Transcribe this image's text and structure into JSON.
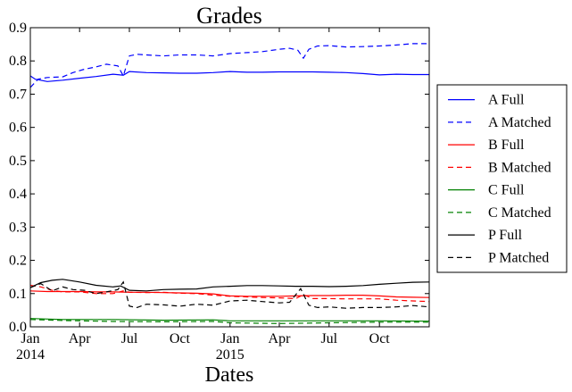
{
  "chart_data": {
    "type": "line",
    "title": "Grades",
    "xlabel": "Dates",
    "ylabel": "",
    "xlim": [
      "2014-01-01",
      "2015-12-31"
    ],
    "ylim": [
      0,
      0.9
    ],
    "grid": false,
    "legend_position": "outside-right",
    "x_ticks": [
      {
        "date": "2014-01-01",
        "label": "Jan",
        "sublabel": "2014"
      },
      {
        "date": "2014-04-01",
        "label": "Apr",
        "sublabel": ""
      },
      {
        "date": "2014-07-01",
        "label": "Jul",
        "sublabel": ""
      },
      {
        "date": "2014-10-01",
        "label": "Oct",
        "sublabel": ""
      },
      {
        "date": "2015-01-01",
        "label": "Jan",
        "sublabel": "2015"
      },
      {
        "date": "2015-04-01",
        "label": "Apr",
        "sublabel": ""
      },
      {
        "date": "2015-07-01",
        "label": "Jul",
        "sublabel": ""
      },
      {
        "date": "2015-10-01",
        "label": "Oct",
        "sublabel": ""
      }
    ],
    "y_ticks": [
      0.0,
      0.1,
      0.2,
      0.3,
      0.4,
      0.5,
      0.6,
      0.7,
      0.8,
      0.9
    ],
    "y_tick_labels": [
      "0.0",
      "0.1",
      "0.2",
      "0.3",
      "0.4",
      "0.5",
      "0.6",
      "0.7",
      "0.8",
      "0.9"
    ],
    "series": [
      {
        "name": "A Full",
        "color": "#0000ff",
        "dash": "solid",
        "points": [
          [
            "2014-01-01",
            0.755
          ],
          [
            "2014-01-10",
            0.745
          ],
          [
            "2014-02-01",
            0.738
          ],
          [
            "2014-03-01",
            0.742
          ],
          [
            "2014-04-01",
            0.748
          ],
          [
            "2014-05-01",
            0.753
          ],
          [
            "2014-06-01",
            0.76
          ],
          [
            "2014-06-20",
            0.757
          ],
          [
            "2014-07-01",
            0.768
          ],
          [
            "2014-08-01",
            0.765
          ],
          [
            "2014-09-01",
            0.764
          ],
          [
            "2014-10-01",
            0.763
          ],
          [
            "2014-11-01",
            0.763
          ],
          [
            "2014-12-01",
            0.765
          ],
          [
            "2015-01-01",
            0.768
          ],
          [
            "2015-02-01",
            0.766
          ],
          [
            "2015-03-01",
            0.766
          ],
          [
            "2015-04-01",
            0.767
          ],
          [
            "2015-05-01",
            0.767
          ],
          [
            "2015-06-01",
            0.767
          ],
          [
            "2015-07-01",
            0.766
          ],
          [
            "2015-08-01",
            0.765
          ],
          [
            "2015-09-01",
            0.762
          ],
          [
            "2015-10-01",
            0.758
          ],
          [
            "2015-11-01",
            0.76
          ],
          [
            "2015-12-01",
            0.759
          ],
          [
            "2015-12-31",
            0.759
          ]
        ]
      },
      {
        "name": "A Matched",
        "color": "#0000ff",
        "dash": "dashed",
        "points": [
          [
            "2014-01-01",
            0.72
          ],
          [
            "2014-01-15",
            0.745
          ],
          [
            "2014-02-01",
            0.75
          ],
          [
            "2014-03-01",
            0.752
          ],
          [
            "2014-03-20",
            0.765
          ],
          [
            "2014-04-10",
            0.775
          ],
          [
            "2014-05-01",
            0.782
          ],
          [
            "2014-05-20",
            0.79
          ],
          [
            "2014-06-10",
            0.785
          ],
          [
            "2014-06-20",
            0.755
          ],
          [
            "2014-07-01",
            0.815
          ],
          [
            "2014-07-15",
            0.82
          ],
          [
            "2014-08-01",
            0.818
          ],
          [
            "2014-09-01",
            0.815
          ],
          [
            "2014-10-01",
            0.818
          ],
          [
            "2014-11-01",
            0.818
          ],
          [
            "2014-12-01",
            0.815
          ],
          [
            "2015-01-01",
            0.822
          ],
          [
            "2015-02-01",
            0.825
          ],
          [
            "2015-03-01",
            0.828
          ],
          [
            "2015-04-01",
            0.835
          ],
          [
            "2015-04-20",
            0.838
          ],
          [
            "2015-05-05",
            0.832
          ],
          [
            "2015-05-15",
            0.808
          ],
          [
            "2015-05-25",
            0.835
          ],
          [
            "2015-06-10",
            0.845
          ],
          [
            "2015-07-01",
            0.846
          ],
          [
            "2015-08-01",
            0.842
          ],
          [
            "2015-09-01",
            0.843
          ],
          [
            "2015-10-01",
            0.845
          ],
          [
            "2015-11-01",
            0.848
          ],
          [
            "2015-12-01",
            0.852
          ],
          [
            "2015-12-31",
            0.852
          ]
        ]
      },
      {
        "name": "B Full",
        "color": "#ff0000",
        "dash": "solid",
        "points": [
          [
            "2014-01-01",
            0.108
          ],
          [
            "2014-02-01",
            0.106
          ],
          [
            "2014-03-01",
            0.106
          ],
          [
            "2014-04-01",
            0.106
          ],
          [
            "2014-05-01",
            0.105
          ],
          [
            "2014-06-01",
            0.105
          ],
          [
            "2014-07-01",
            0.104
          ],
          [
            "2014-08-01",
            0.104
          ],
          [
            "2014-09-01",
            0.103
          ],
          [
            "2014-10-01",
            0.102
          ],
          [
            "2014-11-01",
            0.101
          ],
          [
            "2014-12-01",
            0.099
          ],
          [
            "2015-01-01",
            0.093
          ],
          [
            "2015-02-01",
            0.092
          ],
          [
            "2015-03-01",
            0.092
          ],
          [
            "2015-04-01",
            0.092
          ],
          [
            "2015-05-01",
            0.093
          ],
          [
            "2015-06-01",
            0.094
          ],
          [
            "2015-07-01",
            0.094
          ],
          [
            "2015-08-01",
            0.095
          ],
          [
            "2015-09-01",
            0.095
          ],
          [
            "2015-10-01",
            0.093
          ],
          [
            "2015-11-01",
            0.09
          ],
          [
            "2015-12-01",
            0.089
          ],
          [
            "2015-12-31",
            0.088
          ]
        ]
      },
      {
        "name": "B Matched",
        "color": "#ff0000",
        "dash": "dashed",
        "points": [
          [
            "2014-01-01",
            0.125
          ],
          [
            "2014-01-20",
            0.12
          ],
          [
            "2014-02-10",
            0.11
          ],
          [
            "2014-03-01",
            0.105
          ],
          [
            "2014-04-01",
            0.105
          ],
          [
            "2014-05-01",
            0.1
          ],
          [
            "2014-06-01",
            0.1
          ],
          [
            "2014-06-20",
            0.108
          ],
          [
            "2014-07-01",
            0.104
          ],
          [
            "2014-08-01",
            0.103
          ],
          [
            "2014-09-01",
            0.104
          ],
          [
            "2014-10-01",
            0.101
          ],
          [
            "2014-11-01",
            0.1
          ],
          [
            "2014-12-01",
            0.095
          ],
          [
            "2015-01-01",
            0.092
          ],
          [
            "2015-02-01",
            0.09
          ],
          [
            "2015-03-01",
            0.088
          ],
          [
            "2015-04-01",
            0.087
          ],
          [
            "2015-05-01",
            0.085
          ],
          [
            "2015-05-15",
            0.097
          ],
          [
            "2015-06-01",
            0.085
          ],
          [
            "2015-07-01",
            0.085
          ],
          [
            "2015-08-01",
            0.084
          ],
          [
            "2015-09-01",
            0.084
          ],
          [
            "2015-10-01",
            0.084
          ],
          [
            "2015-11-01",
            0.08
          ],
          [
            "2015-12-01",
            0.078
          ],
          [
            "2015-12-31",
            0.076
          ]
        ]
      },
      {
        "name": "C Full",
        "color": "#008000",
        "dash": "solid",
        "points": [
          [
            "2014-01-01",
            0.025
          ],
          [
            "2014-03-01",
            0.022
          ],
          [
            "2014-06-01",
            0.022
          ],
          [
            "2014-09-01",
            0.02
          ],
          [
            "2014-12-01",
            0.021
          ],
          [
            "2015-01-01",
            0.018
          ],
          [
            "2015-04-01",
            0.018
          ],
          [
            "2015-07-01",
            0.018
          ],
          [
            "2015-10-01",
            0.018
          ],
          [
            "2015-12-31",
            0.017
          ]
        ]
      },
      {
        "name": "C Matched",
        "color": "#008000",
        "dash": "dashed",
        "points": [
          [
            "2014-01-01",
            0.022
          ],
          [
            "2014-03-01",
            0.019
          ],
          [
            "2014-06-01",
            0.016
          ],
          [
            "2014-09-01",
            0.015
          ],
          [
            "2014-12-01",
            0.016
          ],
          [
            "2015-01-01",
            0.012
          ],
          [
            "2015-04-01",
            0.01
          ],
          [
            "2015-07-01",
            0.012
          ],
          [
            "2015-10-01",
            0.014
          ],
          [
            "2015-12-31",
            0.014
          ]
        ]
      },
      {
        "name": "P Full",
        "color": "#000000",
        "dash": "solid",
        "points": [
          [
            "2014-01-01",
            0.118
          ],
          [
            "2014-01-20",
            0.133
          ],
          [
            "2014-02-10",
            0.14
          ],
          [
            "2014-03-01",
            0.143
          ],
          [
            "2014-04-01",
            0.135
          ],
          [
            "2014-05-01",
            0.125
          ],
          [
            "2014-06-01",
            0.12
          ],
          [
            "2014-06-15",
            0.123
          ],
          [
            "2014-07-01",
            0.11
          ],
          [
            "2014-08-01",
            0.108
          ],
          [
            "2014-09-01",
            0.112
          ],
          [
            "2014-10-01",
            0.113
          ],
          [
            "2014-11-01",
            0.114
          ],
          [
            "2014-12-01",
            0.12
          ],
          [
            "2015-01-01",
            0.122
          ],
          [
            "2015-02-01",
            0.124
          ],
          [
            "2015-03-01",
            0.124
          ],
          [
            "2015-04-01",
            0.123
          ],
          [
            "2015-05-01",
            0.122
          ],
          [
            "2015-06-01",
            0.122
          ],
          [
            "2015-07-01",
            0.121
          ],
          [
            "2015-08-01",
            0.122
          ],
          [
            "2015-09-01",
            0.124
          ],
          [
            "2015-10-01",
            0.128
          ],
          [
            "2015-11-01",
            0.131
          ],
          [
            "2015-12-01",
            0.134
          ],
          [
            "2015-12-31",
            0.135
          ]
        ]
      },
      {
        "name": "P Matched",
        "color": "#000000",
        "dash": "dashed",
        "points": [
          [
            "2014-01-01",
            0.118
          ],
          [
            "2014-01-20",
            0.13
          ],
          [
            "2014-02-10",
            0.108
          ],
          [
            "2014-03-01",
            0.12
          ],
          [
            "2014-03-20",
            0.112
          ],
          [
            "2014-04-10",
            0.11
          ],
          [
            "2014-05-01",
            0.1
          ],
          [
            "2014-05-20",
            0.105
          ],
          [
            "2014-06-10",
            0.112
          ],
          [
            "2014-06-20",
            0.135
          ],
          [
            "2014-07-01",
            0.062
          ],
          [
            "2014-07-15",
            0.058
          ],
          [
            "2014-08-01",
            0.068
          ],
          [
            "2014-09-01",
            0.066
          ],
          [
            "2014-10-01",
            0.062
          ],
          [
            "2014-11-01",
            0.068
          ],
          [
            "2014-12-01",
            0.065
          ],
          [
            "2015-01-01",
            0.078
          ],
          [
            "2015-02-01",
            0.08
          ],
          [
            "2015-03-01",
            0.076
          ],
          [
            "2015-04-01",
            0.072
          ],
          [
            "2015-04-20",
            0.074
          ],
          [
            "2015-05-10",
            0.115
          ],
          [
            "2015-05-25",
            0.065
          ],
          [
            "2015-06-10",
            0.058
          ],
          [
            "2015-07-01",
            0.06
          ],
          [
            "2015-08-01",
            0.056
          ],
          [
            "2015-09-01",
            0.058
          ],
          [
            "2015-10-01",
            0.058
          ],
          [
            "2015-11-01",
            0.06
          ],
          [
            "2015-12-01",
            0.064
          ],
          [
            "2015-12-31",
            0.06
          ]
        ]
      }
    ]
  }
}
